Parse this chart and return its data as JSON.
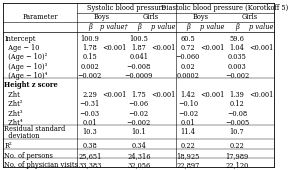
{
  "col_groups": [
    "Systolic blood pressure",
    "Diastolic blood pressure (Korotkoff 5)"
  ],
  "sub_groups": [
    "Boys",
    "Girls",
    "Boys",
    "Girls"
  ],
  "col_headers": [
    "β",
    "p value†",
    "β",
    "p value",
    "β",
    "p value",
    "β",
    "p value"
  ],
  "rows": [
    [
      "Intercept",
      "100.9",
      "",
      "100.5",
      "",
      "60.5",
      "",
      "59.6",
      ""
    ],
    [
      "  Age − 10",
      "1.78",
      "<0.001",
      "1.87",
      "<0.001",
      "0.72",
      "<0.001",
      "1.04",
      "<0.001"
    ],
    [
      "  (Age − 10)²",
      "0.15",
      "",
      "0.041",
      "",
      "−0.060",
      "",
      "0.035",
      ""
    ],
    [
      "  (Age − 10)³",
      "0.002",
      "",
      "−0.008",
      "",
      "0.02",
      "",
      "0.003",
      ""
    ],
    [
      "  (Age − 10)⁴",
      "−0.002",
      "",
      "−0.0009",
      "",
      "0.0002",
      "",
      "−0.002",
      ""
    ],
    [
      "Height z score",
      "",
      "",
      "",
      "",
      "",
      "",
      "",
      ""
    ],
    [
      "  Zht",
      "2.29",
      "<0.001",
      "1.75",
      "<0.001",
      "1.42",
      "<0.001",
      "1.39",
      "<0.001"
    ],
    [
      "  Zht²",
      "−0.31",
      "",
      "−0.06",
      "",
      "−0.10",
      "",
      "0.12",
      ""
    ],
    [
      "  Zht³",
      "−0.03",
      "",
      "−0.02",
      "",
      "−0.02",
      "",
      "−0.08",
      ""
    ],
    [
      "  Zht⁴",
      "0.01",
      "",
      "−0.002",
      "",
      "0.01",
      "",
      "−0.005",
      ""
    ],
    [
      "Residual standard\n  deviation",
      "10.3",
      "",
      "10.1",
      "",
      "11.4",
      "",
      "10.7",
      ""
    ],
    [
      "R²",
      "0.38",
      "",
      "0.34",
      "",
      "0.22",
      "",
      "0.22",
      ""
    ],
    [
      "No. of persons",
      "25,651",
      "",
      "24,316",
      "",
      "18,925",
      "",
      "17,989",
      ""
    ],
    [
      "No. of physician visits",
      "33,383",
      "",
      "32,056",
      "",
      "22,897",
      "",
      "22,120",
      ""
    ]
  ],
  "bg_color": "#ffffff",
  "font_size": 4.8,
  "header_font_size": 4.8
}
